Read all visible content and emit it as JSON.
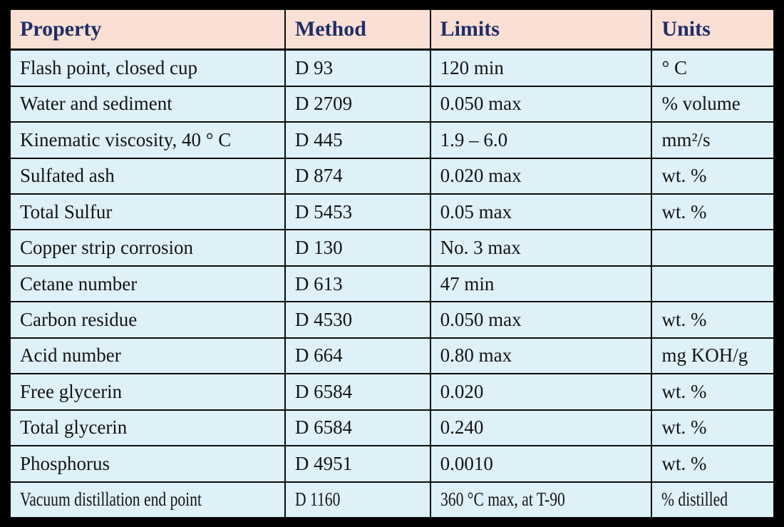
{
  "chart_data": {
    "type": "table",
    "columns": [
      "Property",
      "Method",
      "Limits",
      "Units"
    ],
    "rows": [
      [
        "Flash point, closed cup",
        "D 93",
        "120 min",
        "° C"
      ],
      [
        "Water and sediment",
        "D 2709",
        "0.050 max",
        "% volume"
      ],
      [
        "Kinematic viscosity, 40 ° C",
        "D 445",
        "1.9 – 6.0",
        "mm²/s"
      ],
      [
        "Sulfated ash",
        "D 874",
        "0.020 max",
        "wt. %"
      ],
      [
        "Total Sulfur",
        "D 5453",
        "0.05 max",
        "wt. %"
      ],
      [
        "Copper strip corrosion",
        "D 130",
        "No. 3 max",
        ""
      ],
      [
        "Cetane number",
        "D 613",
        "47 min",
        ""
      ],
      [
        "Carbon residue",
        "D 4530",
        "0.050 max",
        "wt. %"
      ],
      [
        "Acid number",
        "D 664",
        "0.80 max",
        "mg KOH/g"
      ],
      [
        "Free glycerin",
        "D 6584",
        "0.020",
        "wt. %"
      ],
      [
        "Total glycerin",
        "D 6584",
        "0.240",
        "wt. %"
      ],
      [
        "Phosphorus",
        "D 4951",
        "0.0010",
        "wt. %"
      ],
      [
        "Vacuum distillation end point",
        "D 1160",
        "360 °C max, at T-90",
        "% distilled"
      ]
    ],
    "layout": {
      "grid": "all-borders",
      "legend": "none"
    }
  },
  "colors": {
    "header_bg": "#FADFD4",
    "header_text": "#1E2F66",
    "body_row_bg": "#DEF1F8",
    "body_text": "#141414",
    "border": "#0B0B0B",
    "outer_frame": "#000000"
  }
}
